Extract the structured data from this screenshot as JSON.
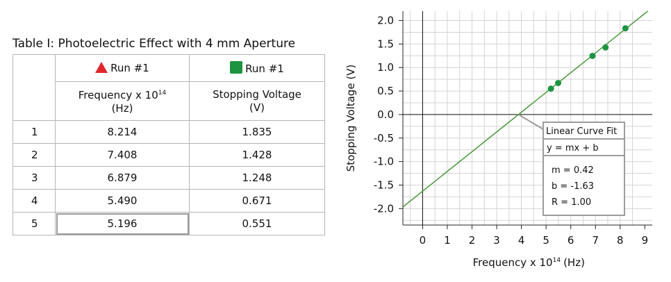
{
  "table": {
    "title": "Table I: Photoelectric Effect with 4 mm Aperture",
    "series_headers": [
      {
        "marker": "red-triangle",
        "label": "Run #1"
      },
      {
        "marker": "green-square",
        "label": "Run #1"
      }
    ],
    "columns": [
      {
        "label": "Frequency x 10",
        "sup": "14",
        "unit": "(Hz)"
      },
      {
        "label": "Stopping Voltage",
        "sup": "",
        "unit": "(V)"
      }
    ],
    "rows": [
      {
        "index": "1",
        "frequency": "8.214",
        "voltage": "1.835"
      },
      {
        "index": "2",
        "frequency": "7.408",
        "voltage": "1.428"
      },
      {
        "index": "3",
        "frequency": "6.879",
        "voltage": "1.248"
      },
      {
        "index": "4",
        "frequency": "5.490",
        "voltage": "0.671"
      },
      {
        "index": "5",
        "frequency": "5.196",
        "voltage": "0.551"
      }
    ]
  },
  "chart_data": {
    "type": "scatter",
    "xlabel": "Frequency x 10",
    "xlabel_sup": "14",
    "xlabel_unit": "(Hz)",
    "ylabel": "Stopping Voltage  (V)",
    "xlim": [
      -0.8,
      9.3
    ],
    "ylim": [
      -2.35,
      2.2
    ],
    "x_ticks": [
      "0",
      "1",
      "2",
      "3",
      "4",
      "5",
      "6",
      "7",
      "8",
      "9"
    ],
    "y_ticks": [
      "2.0",
      "1.5",
      "1.0",
      "0.5",
      "0.0",
      "-0.5",
      "-1.0",
      "-1.5",
      "-2.0"
    ],
    "grid": true,
    "series": [
      {
        "color": "#1e9443",
        "points": [
          {
            "x": 8.214,
            "y": 1.835
          },
          {
            "x": 7.408,
            "y": 1.428
          },
          {
            "x": 6.879,
            "y": 1.248
          },
          {
            "x": 5.49,
            "y": 0.671
          },
          {
            "x": 5.196,
            "y": 0.551
          }
        ]
      }
    ],
    "fit": {
      "color": "#4a9a3a",
      "m": 0.42,
      "b": -1.63,
      "title": "Linear Curve Fit",
      "equation": "y = mx + b",
      "m_label": "m = 0.42",
      "b_label": "b = -1.63",
      "r_label": "R = 1.00"
    }
  }
}
